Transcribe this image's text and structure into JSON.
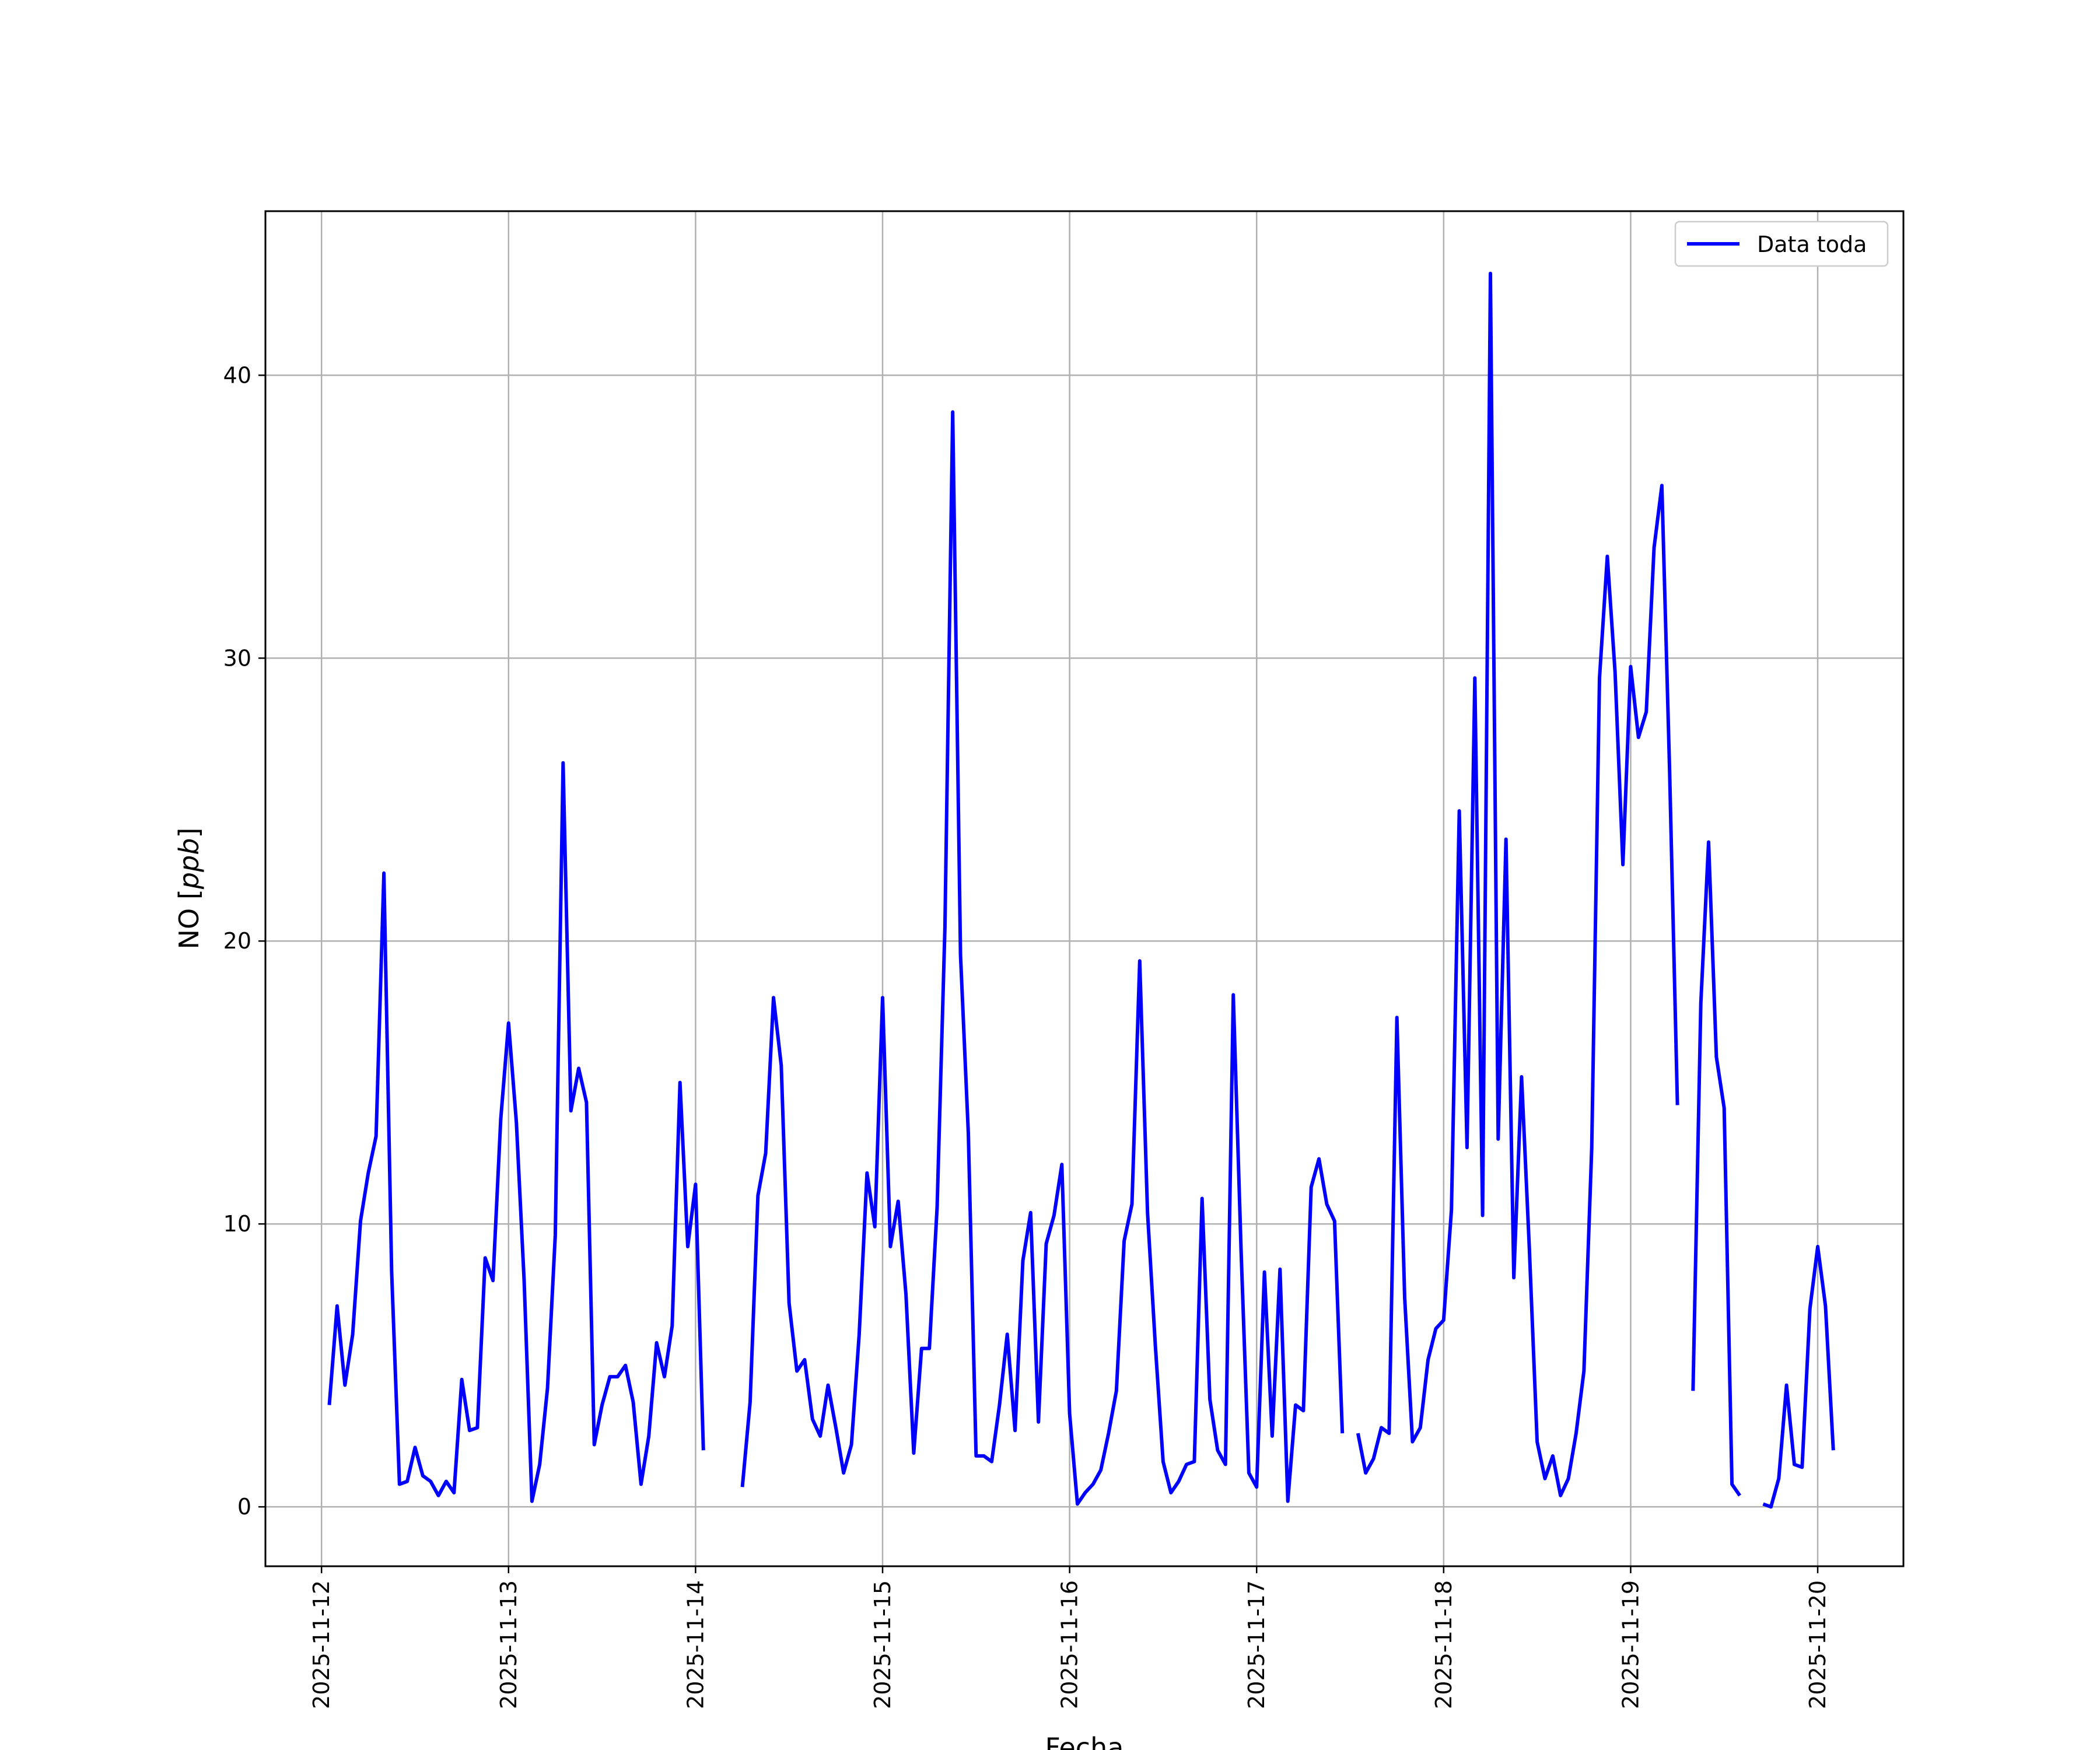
{
  "chart_data": {
    "type": "line",
    "title": "",
    "xlabel": "Fecha",
    "ylabel": "NO [ppb]",
    "ylabel_parts": {
      "prefix": "NO [",
      "unit": "ppb",
      "suffix": "]"
    },
    "xlim": [
      "2025-11-11 16:48",
      "2025-11-20 11:00"
    ],
    "ylim": [
      -2.1,
      45.8
    ],
    "x_ticks": [
      "2025-11-12",
      "2025-11-13",
      "2025-11-14",
      "2025-11-15",
      "2025-11-16",
      "2025-11-17",
      "2025-11-18",
      "2025-11-19",
      "2025-11-20"
    ],
    "y_ticks": [
      0,
      10,
      20,
      30,
      40
    ],
    "y_tick_labels": [
      "0",
      "10",
      "20",
      "30",
      "40"
    ],
    "grid": true,
    "legend_position": "top-right",
    "series": [
      {
        "name": "Data toda",
        "color": "#0000ff",
        "x_start": "2025-11-12 01:00",
        "x_step_hours": 1,
        "values": [
          3.6,
          7.1,
          4.3,
          6.1,
          10.1,
          11.8,
          13.1,
          22.4,
          8.3,
          0.8,
          0.9,
          2.1,
          1.1,
          0.9,
          0.4,
          0.9,
          0.5,
          4.5,
          2.7,
          2.8,
          8.8,
          8.0,
          13.7,
          17.1,
          13.6,
          8.0,
          0.2,
          1.5,
          4.2,
          9.6,
          26.3,
          14.0,
          15.5,
          14.3,
          2.2,
          3.6,
          4.6,
          4.6,
          5.0,
          3.7,
          0.8,
          2.5,
          5.8,
          4.6,
          6.4,
          15.0,
          9.2,
          11.4,
          2.0,
          null,
          null,
          null,
          null,
          0.7,
          3.7,
          11.0,
          12.5,
          18.0,
          15.6,
          7.2,
          4.8,
          5.2,
          3.1,
          2.5,
          4.3,
          2.8,
          1.2,
          2.2,
          6.1,
          11.8,
          9.9,
          18.0,
          9.2,
          10.8,
          7.5,
          1.9,
          5.6,
          5.6,
          10.6,
          20.5,
          38.7,
          19.5,
          13.2,
          1.8,
          1.8,
          1.6,
          3.6,
          6.1,
          2.7,
          8.7,
          10.4,
          3.0,
          9.3,
          10.3,
          12.1,
          3.3,
          0.1,
          0.5,
          0.8,
          1.3,
          2.6,
          4.1,
          9.4,
          10.7,
          19.3,
          10.4,
          5.7,
          1.6,
          0.5,
          0.9,
          1.5,
          1.6,
          10.9,
          3.8,
          2.0,
          1.5,
          18.1,
          9.1,
          1.2,
          0.7,
          8.3,
          2.5,
          8.4,
          0.2,
          3.6,
          3.4,
          11.3,
          12.3,
          10.7,
          10.1,
          2.6,
          null,
          2.6,
          1.2,
          1.7,
          2.8,
          2.6,
          17.3,
          7.4,
          2.3,
          2.8,
          5.2,
          6.3,
          6.6,
          10.5,
          24.6,
          12.7,
          29.3,
          10.3,
          43.6,
          13.0,
          23.6,
          8.1,
          15.2,
          9.1,
          2.3,
          1.0,
          1.8,
          0.4,
          1.0,
          2.6,
          4.8,
          12.7,
          29.3,
          33.6,
          29.5,
          22.7,
          29.7,
          27.2,
          28.1,
          33.9,
          36.1,
          26.0,
          14.2,
          null,
          4.1,
          17.8,
          23.5,
          15.9,
          14.1,
          0.8,
          0.4,
          null,
          null,
          0.1,
          0.0,
          1.0,
          4.3,
          1.5,
          1.4,
          7.0,
          9.2,
          7.1,
          2.0
        ]
      }
    ]
  }
}
